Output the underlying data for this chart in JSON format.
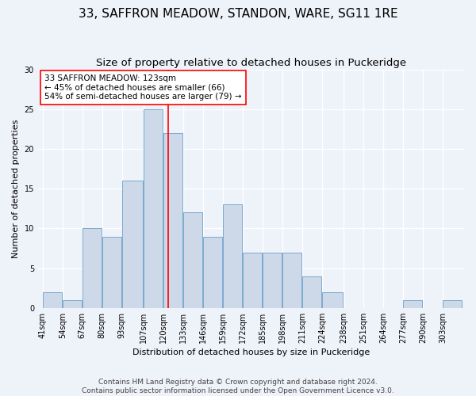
{
  "title": "33, SAFFRON MEADOW, STANDON, WARE, SG11 1RE",
  "subtitle": "Size of property relative to detached houses in Puckeridge",
  "xlabel": "Distribution of detached houses by size in Puckeridge",
  "ylabel": "Number of detached properties",
  "bar_color": "#cdd9e8",
  "bar_edge_color": "#7aaad0",
  "bins": [
    "41sqm",
    "54sqm",
    "67sqm",
    "80sqm",
    "93sqm",
    "107sqm",
    "120sqm",
    "133sqm",
    "146sqm",
    "159sqm",
    "172sqm",
    "185sqm",
    "198sqm",
    "211sqm",
    "224sqm",
    "238sqm",
    "251sqm",
    "264sqm",
    "277sqm",
    "290sqm",
    "303sqm"
  ],
  "values": [
    2,
    1,
    10,
    9,
    16,
    25,
    22,
    12,
    9,
    13,
    7,
    7,
    7,
    4,
    2,
    0,
    0,
    0,
    1,
    0,
    1
  ],
  "ylim": [
    0,
    30
  ],
  "yticks": [
    0,
    5,
    10,
    15,
    20,
    25,
    30
  ],
  "bin_edges_numeric": [
    41,
    54,
    67,
    80,
    93,
    107,
    120,
    133,
    146,
    159,
    172,
    185,
    198,
    211,
    224,
    238,
    251,
    264,
    277,
    290,
    303
  ],
  "property_line_x": 123,
  "annotation_text": "33 SAFFRON MEADOW: 123sqm\n← 45% of detached houses are smaller (66)\n54% of semi-detached houses are larger (79) →",
  "annotation_box_color": "white",
  "annotation_box_edge_color": "red",
  "vline_color": "red",
  "footer1": "Contains HM Land Registry data © Crown copyright and database right 2024.",
  "footer2": "Contains public sector information licensed under the Open Government Licence v3.0.",
  "background_color": "#eef2f9",
  "grid_color": "white",
  "title_fontsize": 11,
  "subtitle_fontsize": 9.5,
  "axis_label_fontsize": 8,
  "tick_fontsize": 7,
  "annotation_fontsize": 7.5,
  "footer_fontsize": 6.5
}
